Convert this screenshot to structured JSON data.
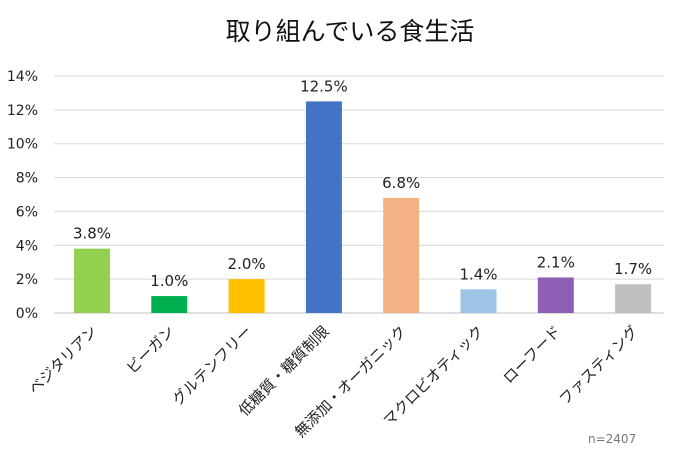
{
  "chart_data": {
    "type": "bar",
    "title": "取り組んでいる食生活",
    "note": "n=2407",
    "categories": [
      "ベジタリアン",
      "ビーガン",
      "グルテンフリー",
      "低糖質・糖質制限",
      "無添加・オーガニック",
      "マクロビオティック",
      "ローフード",
      "ファスティング"
    ],
    "values": [
      3.8,
      1.0,
      2.0,
      12.5,
      6.8,
      1.4,
      2.1,
      1.7
    ],
    "value_labels": [
      "3.8%",
      "1.0%",
      "2.0%",
      "12.5%",
      "6.8%",
      "1.4%",
      "2.1%",
      "1.7%"
    ],
    "colors": [
      "#92d050",
      "#00b050",
      "#ffc000",
      "#4472c4",
      "#f4b183",
      "#9dc3e6",
      "#8e5fb4",
      "#bfbfbf"
    ],
    "y_ticks": [
      "0%",
      "2%",
      "4%",
      "6%",
      "8%",
      "10%",
      "12%",
      "14%"
    ],
    "ylim": [
      0,
      14
    ],
    "grid": true,
    "legend": "none"
  }
}
